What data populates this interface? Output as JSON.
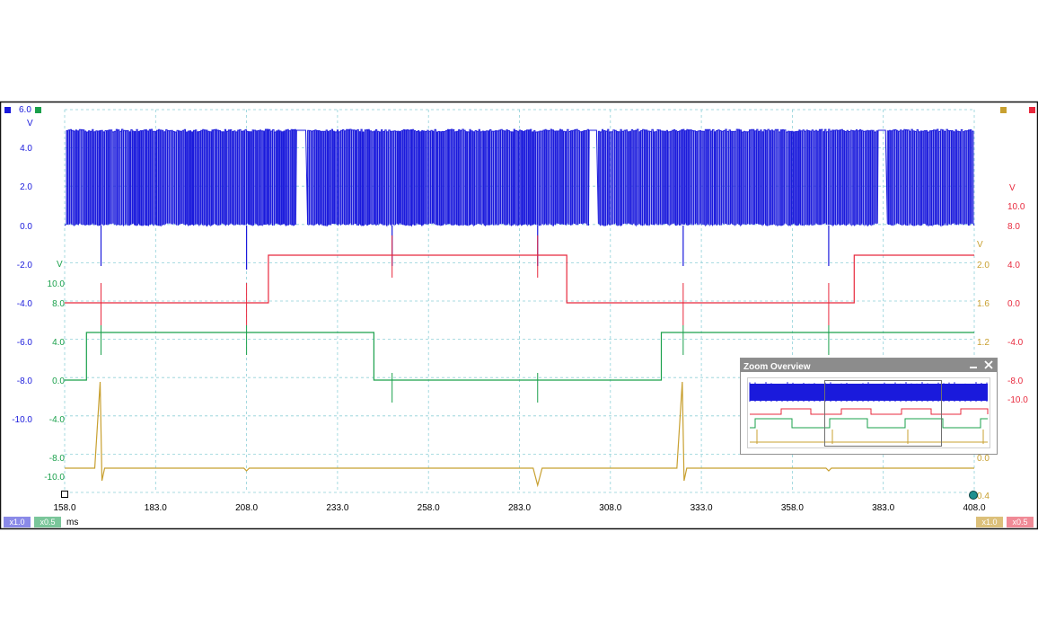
{
  "colors": {
    "blue": "#1a1adc",
    "red": "#e8283c",
    "green": "#1aa04b",
    "gold": "#c8a030",
    "grid": "#8fd0d8",
    "frame": "#111111"
  },
  "channels": {
    "A": {
      "color": "#1a1adc",
      "unit": "V",
      "ticks": [
        "6.0",
        "4.0",
        "2.0",
        "0.0",
        "-2.0",
        "-4.0",
        "-6.0",
        "-8.0",
        "-10.0"
      ]
    },
    "B": {
      "color": "#1aa04b",
      "unit": "V",
      "ticks": [
        "10.0",
        "8.0",
        "4.0",
        "0.0",
        "-4.0",
        "-8.0",
        "-10.0"
      ]
    },
    "C": {
      "color": "#e8283c",
      "unit": "V",
      "ticks": [
        "10.0",
        "8.0",
        "4.0",
        "0.0",
        "-4.0",
        "-8.0",
        "-10.0"
      ]
    },
    "D": {
      "color": "#c8a030",
      "unit": "V",
      "ticks": [
        "2.0",
        "1.6",
        "1.2",
        "0.0",
        "0.4"
      ]
    }
  },
  "x_axis": {
    "unit": "ms",
    "ticks": [
      "158.0",
      "183.0",
      "208.0",
      "233.0",
      "258.0",
      "283.0",
      "308.0",
      "333.0",
      "358.0",
      "383.0",
      "408.0"
    ]
  },
  "magnification": {
    "blue": "x1.0",
    "green": "x0.5",
    "gold": "x1.0",
    "red": "x0.5"
  },
  "zoom_overview": {
    "title": "Zoom Overview",
    "minimize_icon": "minimize-icon",
    "close_icon": "close-icon"
  },
  "chart_data": {
    "type": "line",
    "x_range": [
      158.0,
      408.0
    ],
    "x_unit": "ms",
    "grid": true,
    "series": [
      {
        "channel": "A",
        "color": "#1a1adc",
        "description": "high-frequency square pulses between 0 and ~5 V with gaps",
        "gaps_ms": [
          [
            221.5,
            224.5
          ],
          [
            302.0,
            304.5
          ],
          [
            381.5,
            384.0
          ]
        ],
        "spikes_ms": [
          168.0,
          208.0,
          248.0,
          288.0,
          328.0,
          368.0
        ]
      },
      {
        "channel": "C",
        "color": "#e8283c",
        "steps_ms": [
          [
            158,
            0
          ],
          [
            214,
            10
          ],
          [
            296,
            0
          ],
          [
            375,
            10
          ],
          [
            408,
            10
          ]
        ],
        "spikes_ms": [
          168.0,
          208.0,
          248.0,
          288.0,
          328.0,
          368.0
        ]
      },
      {
        "channel": "B",
        "color": "#1aa04b",
        "steps_ms": [
          [
            158,
            0
          ],
          [
            164,
            4
          ],
          [
            243,
            0
          ],
          [
            322,
            4
          ],
          [
            408,
            4
          ]
        ],
        "spikes_ms": [
          168.0,
          208.0,
          248.0,
          288.0,
          328.0,
          368.0
        ]
      },
      {
        "channel": "D",
        "color": "#c8a030",
        "baseline": 0.2,
        "events_ms": [
          168.0,
          208.0,
          288.0,
          328.0,
          368.0
        ]
      }
    ]
  }
}
